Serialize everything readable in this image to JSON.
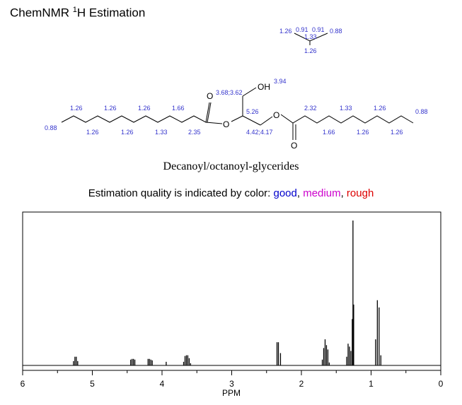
{
  "header": {
    "title_prefix": "ChemNMR ",
    "title_sup": "1",
    "title_suffix": "H Estimation"
  },
  "molecule": {
    "name": "Decanoyl/octanoyl-glycerides",
    "shift_color": "#3333cc",
    "labels": {
      "ipr_ch3_left": "1.26",
      "ipr_a": "0.91",
      "ipr_b": "0.91",
      "ipr_ch3_right": "0.88",
      "ipr_ch2": "1.33",
      "ipr_bottom": "1.26",
      "ch2o": "3.68;3.62",
      "oh": "3.94",
      "oh_text": "OH",
      "c1": "1.26",
      "c2": "1.26",
      "c3": "1.26",
      "c4": "1.66",
      "c5": "1.26",
      "c6": "1.26",
      "c7": "1.33",
      "c8": "2.35",
      "c_ch3": "0.88",
      "ch": "5.26",
      "ch2_low": "4.42;4.17",
      "r1": "2.32",
      "r2": "1.33",
      "r3": "1.26",
      "r_ch3": "0.88",
      "r4": "1.66",
      "r5": "1.26",
      "r6": "1.26",
      "o_top": "O",
      "o_ester_left": "O",
      "o_ester_right": "O",
      "o_bottom": "O"
    }
  },
  "legend": {
    "prefix": "Estimation quality is indicated by color: ",
    "good": "good",
    "sep1": ", ",
    "medium": "medium",
    "sep2": ", ",
    "rough": "rough",
    "good_color": "#0000cc",
    "medium_color": "#cc00cc",
    "rough_color": "#dd0000"
  },
  "chart_data": {
    "type": "line",
    "title": "",
    "xlabel": "PPM",
    "ylabel": "",
    "xlim": [
      6,
      0
    ],
    "ylim": [
      0,
      1
    ],
    "x_reversed": true,
    "grid": false,
    "xticks": [
      6,
      5,
      4,
      3,
      2,
      1,
      0
    ],
    "tick_labels": [
      "6",
      "5",
      "4",
      "3",
      "2",
      "1",
      "0"
    ],
    "peaks": [
      {
        "group": "5.26",
        "shift": 5.24,
        "lines": [
          [
            5.21,
            0.03
          ],
          [
            5.23,
            0.06
          ],
          [
            5.25,
            0.06
          ],
          [
            5.27,
            0.03
          ]
        ]
      },
      {
        "group": "4.42",
        "shift": 4.42,
        "lines": [
          [
            4.45,
            0.04
          ],
          [
            4.43,
            0.045
          ],
          [
            4.41,
            0.045
          ],
          [
            4.39,
            0.04
          ]
        ]
      },
      {
        "group": "4.17",
        "shift": 4.17,
        "lines": [
          [
            4.2,
            0.045
          ],
          [
            4.18,
            0.045
          ],
          [
            4.16,
            0.04
          ],
          [
            4.14,
            0.035
          ]
        ]
      },
      {
        "group": "3.94",
        "shift": 3.94,
        "lines": [
          [
            3.94,
            0.025
          ]
        ]
      },
      {
        "group": "3.68;3.62",
        "shift": 3.65,
        "lines": [
          [
            3.69,
            0.025
          ],
          [
            3.67,
            0.065
          ],
          [
            3.65,
            0.07
          ],
          [
            3.63,
            0.07
          ],
          [
            3.61,
            0.05
          ],
          [
            3.59,
            0.015
          ]
        ]
      },
      {
        "group": "2.32",
        "shift": 2.32,
        "lines": [
          [
            2.35,
            0.16
          ],
          [
            2.33,
            0.16
          ],
          [
            2.3,
            0.085
          ]
        ]
      },
      {
        "group": "1.66",
        "shift": 1.65,
        "lines": [
          [
            1.7,
            0.04
          ],
          [
            1.68,
            0.12
          ],
          [
            1.66,
            0.18
          ],
          [
            1.64,
            0.14
          ],
          [
            1.62,
            0.11
          ],
          [
            1.6,
            0.02
          ]
        ]
      },
      {
        "group": "1.33",
        "shift": 1.32,
        "lines": [
          [
            1.35,
            0.06
          ],
          [
            1.33,
            0.15
          ],
          [
            1.31,
            0.13
          ],
          [
            1.29,
            0.1
          ]
        ]
      },
      {
        "group": "1.26",
        "shift": 1.26,
        "lines": [
          [
            1.27,
            0.32
          ],
          [
            1.26,
            1.0
          ],
          [
            1.25,
            0.42
          ]
        ]
      },
      {
        "group": "0.91",
        "shift": 0.9,
        "lines": [
          [
            0.935,
            0.18
          ],
          [
            0.91,
            0.45
          ],
          [
            0.885,
            0.4
          ],
          [
            0.86,
            0.07
          ]
        ]
      }
    ]
  }
}
